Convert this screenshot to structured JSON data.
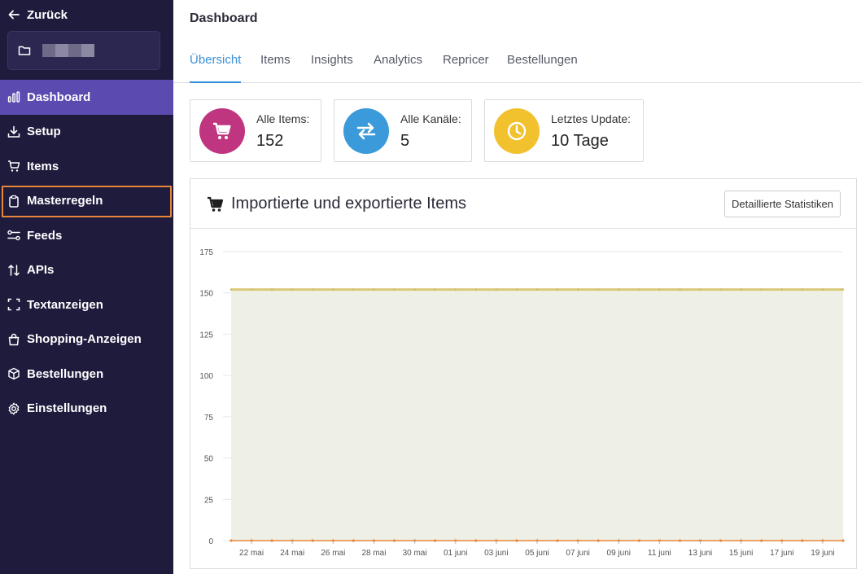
{
  "sidebar": {
    "back_label": "Zurück",
    "items": [
      {
        "label": "Dashboard",
        "icon": "bar-chart-icon"
      },
      {
        "label": "Setup",
        "icon": "download-icon"
      },
      {
        "label": "Items",
        "icon": "cart-icon"
      },
      {
        "label": "Masterregeln",
        "icon": "clipboard-icon"
      },
      {
        "label": "Feeds",
        "icon": "toggles-icon"
      },
      {
        "label": "APIs",
        "icon": "arrows-updown-icon"
      },
      {
        "label": "Textanzeigen",
        "icon": "scan-icon"
      },
      {
        "label": "Shopping-Anzeigen",
        "icon": "shopping-bag-icon"
      },
      {
        "label": "Bestellungen",
        "icon": "box-icon"
      },
      {
        "label": "Einstellungen",
        "icon": "gear-icon"
      }
    ]
  },
  "header": {
    "title": "Dashboard"
  },
  "tabs": [
    "Übersicht",
    "Items",
    "Insights",
    "Analytics",
    "Repricer",
    "Bestellungen"
  ],
  "stats": [
    {
      "label": "Alle Items:",
      "value": "152",
      "color": "#c0357f",
      "icon": "cart-icon"
    },
    {
      "label": "Alle Kanäle:",
      "value": "5",
      "color": "#3b9ad9",
      "icon": "exchange-icon"
    },
    {
      "label": "Letztes Update:",
      "value": "10 Tage",
      "color": "#f2c12e",
      "icon": "clock-icon"
    }
  ],
  "panel": {
    "title": "Importierte und exportierte Items",
    "button_label": "Detaillierte Statistiken"
  },
  "chart_data": {
    "type": "area",
    "x": [
      "21 mai",
      "22 mai",
      "23 mai",
      "24 mai",
      "25 mai",
      "26 mai",
      "27 mai",
      "28 mai",
      "29 mai",
      "30 mai",
      "31 mai",
      "01 juni",
      "02 juni",
      "03 juni",
      "04 juni",
      "05 juni",
      "06 juni",
      "07 juni",
      "08 juni",
      "09 juni",
      "10 juni",
      "11 juni",
      "12 juni",
      "13 juni",
      "14 juni",
      "15 juni",
      "16 juni",
      "17 juni",
      "18 juni",
      "19 juni",
      "20 juni"
    ],
    "tick_labels": [
      "22 mai",
      "24 mai",
      "26 mai",
      "28 mai",
      "30 mai",
      "01 juni",
      "03 juni",
      "05 juni",
      "07 juni",
      "09 juni",
      "11 juni",
      "13 juni",
      "15 juni",
      "17 juni",
      "19 juni"
    ],
    "series": [
      {
        "values": [
          152,
          152,
          152,
          152,
          152,
          152,
          152,
          152,
          152,
          152,
          152,
          152,
          152,
          152,
          152,
          152,
          152,
          152,
          152,
          152,
          152,
          152,
          152,
          152,
          152,
          152,
          152,
          152,
          152,
          152,
          152
        ],
        "color": "#d9c97a"
      },
      {
        "values": [
          0,
          0,
          0,
          0,
          0,
          0,
          0,
          0,
          0,
          0,
          0,
          0,
          0,
          0,
          0,
          0,
          0,
          0,
          0,
          0,
          0,
          0,
          0,
          0,
          0,
          0,
          0,
          0,
          0,
          0,
          0
        ],
        "color": "#e8873a"
      }
    ],
    "yticks": [
      0,
      25,
      50,
      75,
      100,
      125,
      150,
      175
    ],
    "ylim": [
      0,
      175
    ],
    "grid": true
  }
}
